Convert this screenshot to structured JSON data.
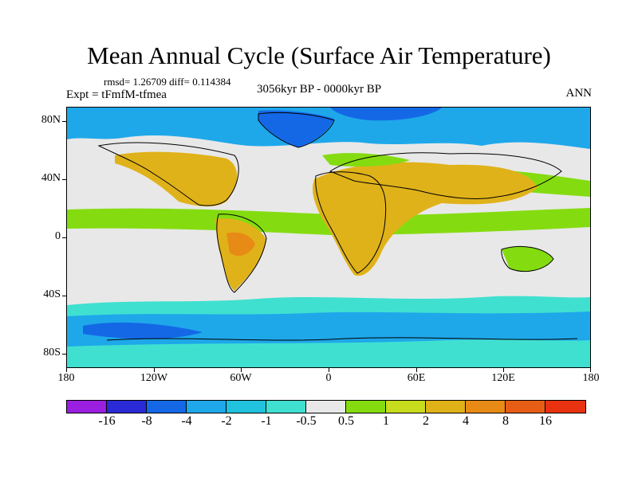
{
  "title": "Mean Annual Cycle (Surface Air Temperature)",
  "stats": "rmsd= 1.26709 diff= 0.114384",
  "experiment": "Expt = tFmfM-tfmea",
  "period": "3056kyr BP - 0000kyr BP",
  "season": "ANN",
  "map": {
    "projection": "cylindrical equidistant",
    "lon_range": [
      -180,
      180
    ],
    "lat_range": [
      -90,
      90
    ],
    "y_tick_labels": [
      "80N",
      "40N",
      "0",
      "40S",
      "80S"
    ],
    "x_tick_labels": [
      "180",
      "120W",
      "60W",
      "0",
      "60E",
      "120E",
      "180"
    ],
    "background_color": "#e8e8e8"
  },
  "colorbar": {
    "colors": [
      "#9a1fe0",
      "#2a2ad6",
      "#1468e6",
      "#1ea8ea",
      "#20c2de",
      "#40e0d0",
      "#e8e8e8",
      "#84dc10",
      "#c8dc1e",
      "#e0b21a",
      "#e88a16",
      "#e85d16",
      "#e83210"
    ],
    "labels": [
      "-16",
      "-8",
      "-4",
      "-2",
      "-1",
      "-0.5",
      "0.5",
      "1",
      "2",
      "4",
      "8",
      "16"
    ]
  }
}
